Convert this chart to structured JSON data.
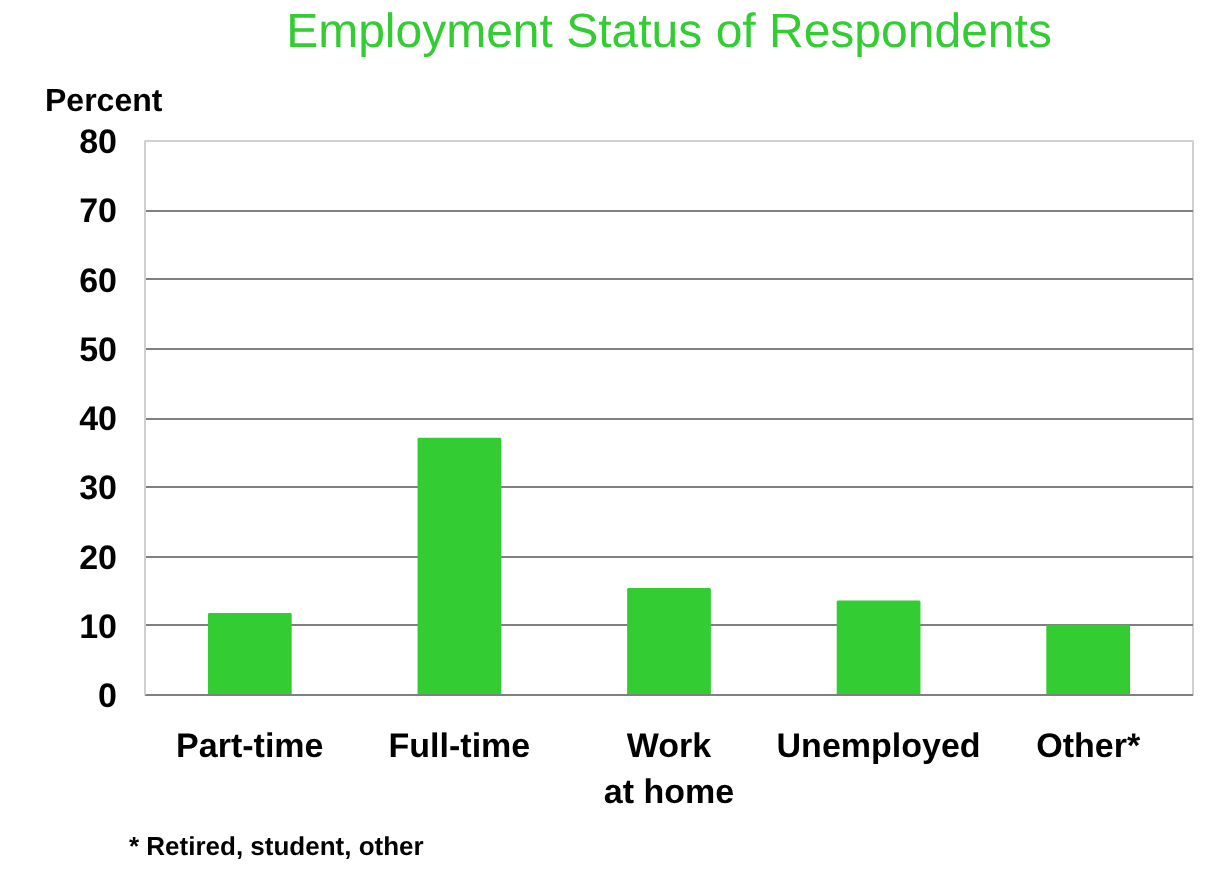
{
  "chart_data": {
    "type": "bar",
    "title": "Employment Status of Respondents",
    "ylabel": "Percent",
    "categories": [
      "Part-time",
      "Full-time",
      "Work at home",
      "Unemployed",
      "Other*"
    ],
    "values": [
      11.7,
      37,
      15.3,
      13.5,
      10
    ],
    "color": "#33cc33",
    "ylim": [
      0,
      80
    ],
    "yticks": [
      0,
      10,
      20,
      30,
      40,
      50,
      60,
      70,
      80
    ],
    "grid": "y",
    "annotations": [
      "* Retired, student, other"
    ]
  }
}
